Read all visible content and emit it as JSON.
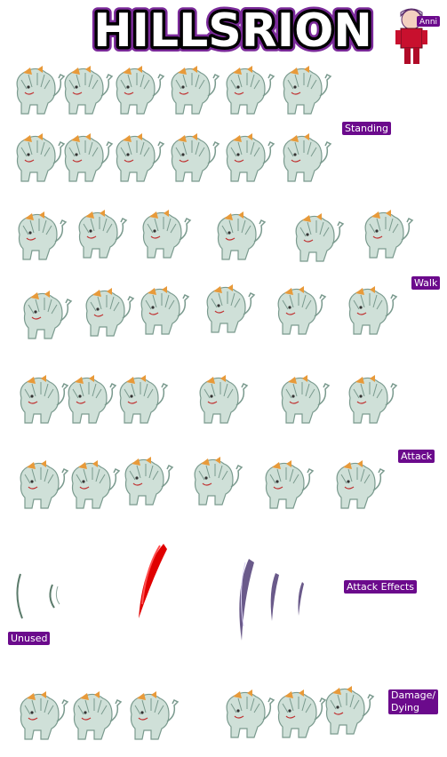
{
  "title": "HILLSRION",
  "author_tag": "Anni",
  "sections": {
    "standing": "Standing",
    "walk": "Walk",
    "attack": "Attack",
    "attack_effects": "Attack Effects",
    "unused": "Unused",
    "damage_dying": "Damage/\nDying"
  },
  "colors": {
    "title_fill": "#ffffff",
    "title_outline": "#000000",
    "title_glow": "#7b2a9a",
    "label_bg": "#6b0a8c",
    "sprite_body": "#cfe0d8",
    "sprite_shade": "#7a9a8e",
    "sprite_horn": "#e89a3a",
    "effect_red": "#e00000",
    "effect_purple": "#6a5a8a",
    "effect_green": "#5a7a6a"
  },
  "icons": [
    "lion-sprite",
    "claw-slash-effect",
    "anni-avatar-icon"
  ]
}
